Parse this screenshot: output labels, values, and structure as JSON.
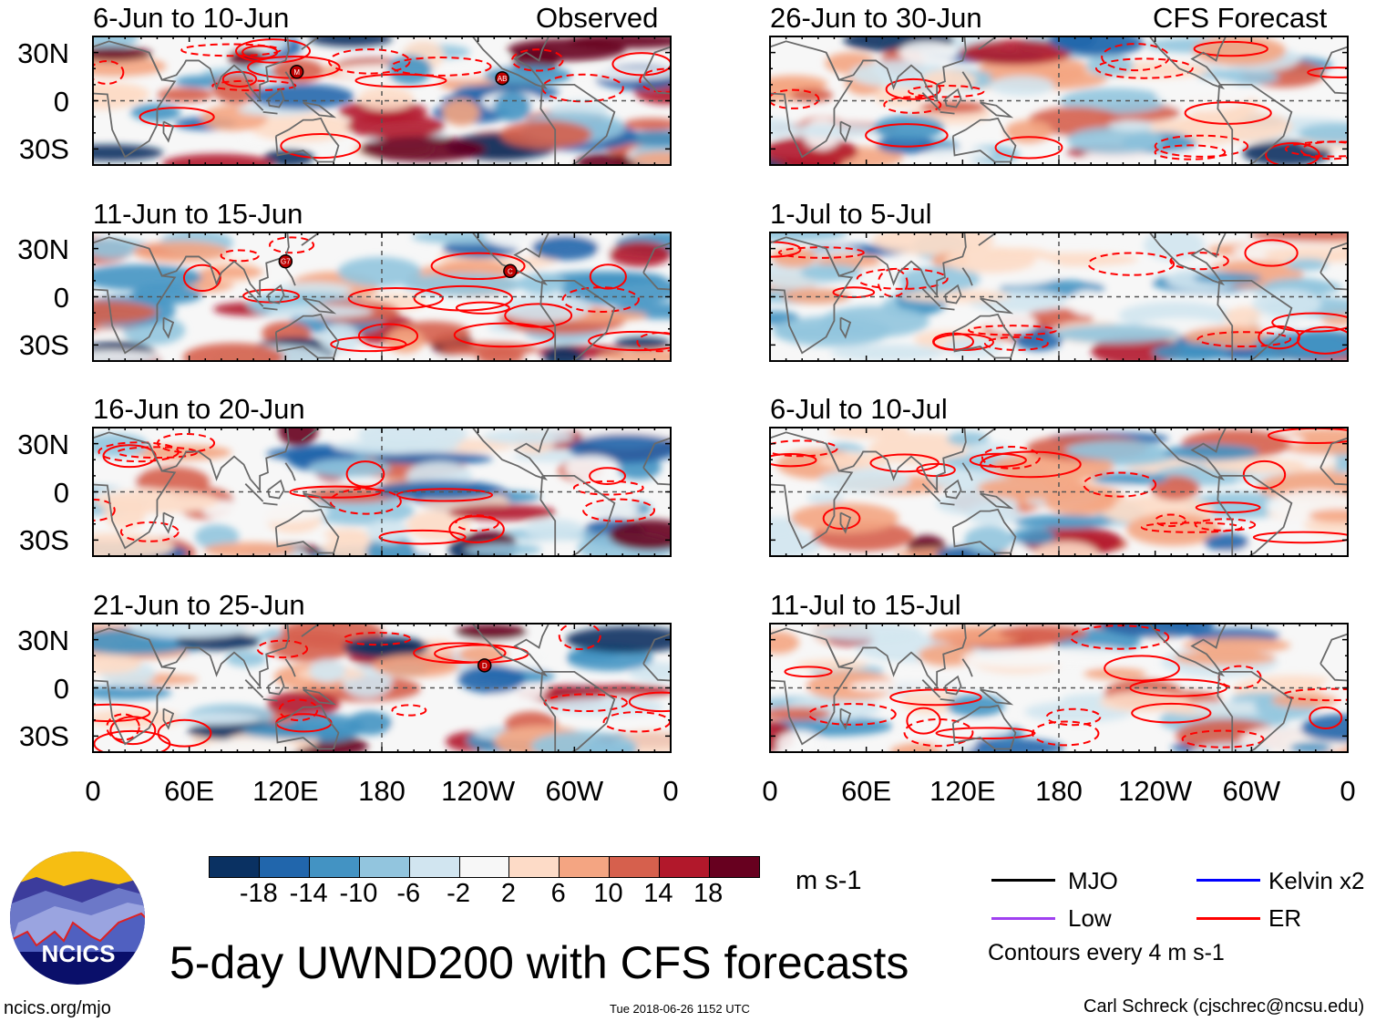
{
  "header": {
    "left_label": "Observed",
    "right_label": "CFS Forecast"
  },
  "panels": [
    {
      "title": "6-Jun to 10-Jun",
      "column": "observed",
      "storms": [
        {
          "label": "M",
          "lon": 127,
          "lat": 18
        },
        {
          "label": "AB",
          "lon": 255,
          "lat": 14
        }
      ]
    },
    {
      "title": "11-Jun to 15-Jun",
      "column": "observed",
      "storms": [
        {
          "label": "G7",
          "lon": 120,
          "lat": 22
        },
        {
          "label": "C",
          "lon": 260,
          "lat": 16
        }
      ]
    },
    {
      "title": "16-Jun to 20-Jun",
      "column": "observed",
      "storms": []
    },
    {
      "title": "21-Jun to 25-Jun",
      "column": "observed",
      "storms": [
        {
          "label": "D",
          "lon": 244,
          "lat": 14
        }
      ]
    },
    {
      "title": "26-Jun to 30-Jun",
      "column": "forecast",
      "storms": []
    },
    {
      "title": "1-Jul to 5-Jul",
      "column": "forecast",
      "storms": []
    },
    {
      "title": "6-Jul to 10-Jul",
      "column": "forecast",
      "storms": []
    },
    {
      "title": "11-Jul to 15-Jul",
      "column": "forecast",
      "storms": []
    }
  ],
  "axes": {
    "lat_labels": [
      "30N",
      "0",
      "30S"
    ],
    "lon_labels": [
      "0",
      "60E",
      "120E",
      "180",
      "120W",
      "60W",
      "0"
    ],
    "lon_range": [
      0,
      360
    ],
    "lat_range": [
      -40,
      40
    ]
  },
  "colorbar": {
    "colors": [
      "#0a3162",
      "#2166ac",
      "#4393c3",
      "#92c5de",
      "#d1e5f0",
      "#f7f7f7",
      "#fddbc7",
      "#f4a582",
      "#d6604d",
      "#b2182b",
      "#67001f"
    ],
    "labels": [
      "-18",
      "-14",
      "-10",
      "-6",
      "-2",
      "2",
      "6",
      "10",
      "14",
      "18"
    ],
    "units": "m s-1"
  },
  "legend": {
    "items": [
      {
        "label": "MJO",
        "color": "#000000"
      },
      {
        "label": "Kelvin x2",
        "color": "#0000ff"
      },
      {
        "label": "Low",
        "color": "#a040f0"
      },
      {
        "label": "ER",
        "color": "#ff0000"
      }
    ],
    "note": "Contours every 4 m s-1"
  },
  "footer": {
    "title": "5-day UWND200 with CFS forecasts",
    "url": "ncics.org/mjo",
    "timestamp": "Tue 2018-06-26 1152 UTC",
    "credit": "Carl Schreck (cjschrec@ncsu.edu)",
    "logo_text": "NCICS"
  },
  "chart_data": {
    "type": "heatmap",
    "title": "5-day UWND200 with CFS forecasts",
    "variable": "200-hPa zonal wind anomaly",
    "units": "m s-1",
    "levels": [
      -18,
      -14,
      -10,
      -6,
      -2,
      2,
      6,
      10,
      14,
      18
    ],
    "xlabel": "",
    "ylabel": "",
    "xticks": [
      "0",
      "60E",
      "120E",
      "180",
      "120W",
      "60W",
      "0"
    ],
    "yticks": [
      "30N",
      "0",
      "30S"
    ],
    "contour_interval": 4,
    "contour_series": [
      "MJO",
      "Kelvin x2",
      "Low",
      "ER"
    ]
  }
}
